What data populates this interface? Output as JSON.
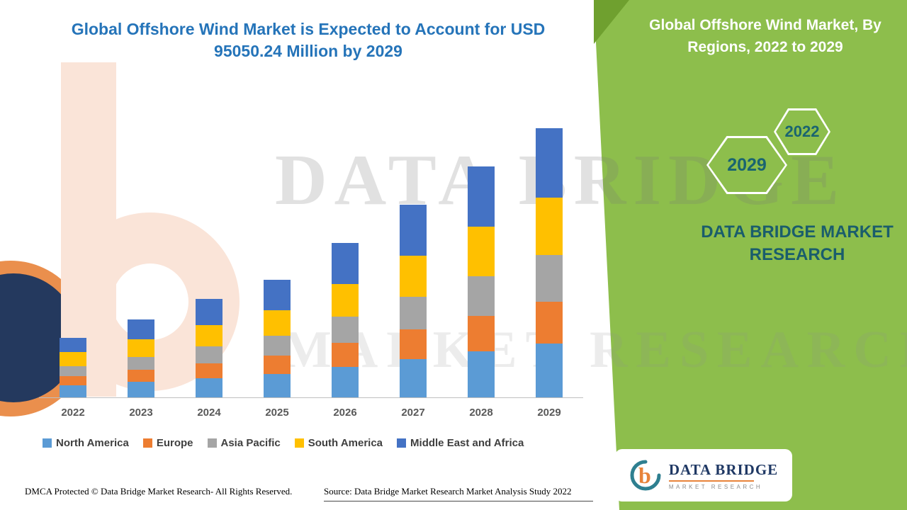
{
  "header": {
    "chart_title_line1": "Global Offshore Wind Market is Expected to Account for USD",
    "chart_title_line2": "95050.24 Million by 2029"
  },
  "side_panel": {
    "title": "Global Offshore Wind Market, By Regions, 2022 to 2029",
    "badge_2022": "2022",
    "badge_2029": "2029",
    "brand": "DATA BRIDGE MARKET RESEARCH"
  },
  "watermark": {
    "line1": "DATA BRIDGE",
    "line2": "MARKET RESEARCH"
  },
  "colors": {
    "panel_green": "#8DBE4C",
    "panel_green_dark": "#6FA02F",
    "title_blue": "#2574B9",
    "brand_teal": "#1A5D6C",
    "hex_text_teal": "#1A6470"
  },
  "chart_data": {
    "type": "bar",
    "stacked": true,
    "title": "Global Offshore Wind Market is Expected to Account for USD 95050.24 Million by 2029",
    "xlabel": "",
    "ylabel": "",
    "ylim": [
      0,
      95050.24
    ],
    "grid": false,
    "legend_position": "bottom",
    "categories": [
      "2022",
      "2023",
      "2024",
      "2025",
      "2026",
      "2027",
      "2028",
      "2029"
    ],
    "series": [
      {
        "name": "North America",
        "color": "#5B9BD5",
        "values": [
          4260,
          5520,
          6770,
          8280,
          10780,
          13540,
          16300,
          19060
        ]
      },
      {
        "name": "Europe",
        "color": "#ED7D31",
        "values": [
          3260,
          4260,
          5270,
          6520,
          8530,
          10530,
          12540,
          14800
        ]
      },
      {
        "name": "Asia Pacific",
        "color": "#A5A5A5",
        "values": [
          3510,
          4510,
          6020,
          7020,
          9280,
          11540,
          14040,
          16300
        ]
      },
      {
        "name": "South America",
        "color": "#FFC000",
        "values": [
          5020,
          6270,
          7520,
          9030,
          11540,
          14550,
          17310,
          20310
        ]
      },
      {
        "name": "Middle East and Africa",
        "color": "#4472C4",
        "values": [
          5020,
          7020,
          9280,
          10780,
          14300,
          17810,
          21320,
          24580.24
        ]
      }
    ]
  },
  "footer": {
    "dmca": "DMCA Protected © Data Bridge Market Research- All Rights Reserved.",
    "source": "Source: Data Bridge Market Research Market Analysis Study 2022",
    "logo_title": "DATA BRIDGE",
    "logo_subtitle": "MARKET RESEARCH"
  }
}
